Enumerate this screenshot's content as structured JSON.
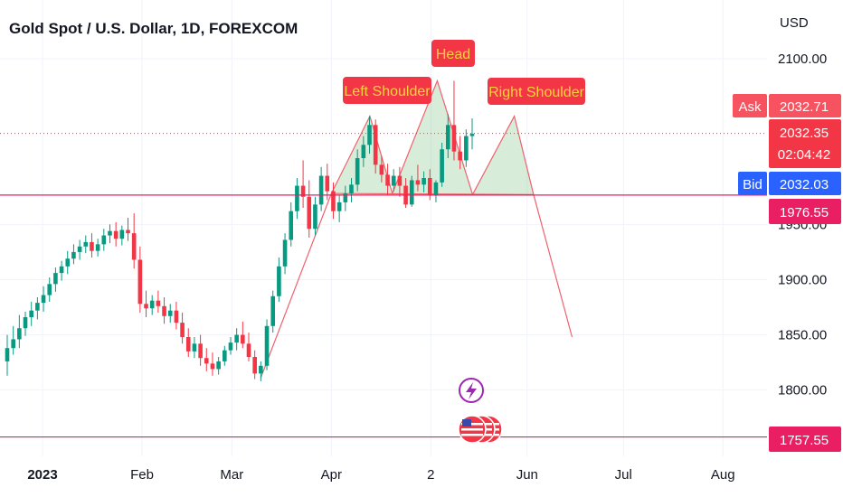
{
  "chart_data": {
    "type": "candlestick",
    "title": "Gold Spot / U.S. Dollar, 1D, FOREXCOM",
    "currency": "USD",
    "y_ticks": [
      {
        "value": 2100,
        "label": "2100.00"
      },
      {
        "value": 1950,
        "label": "1950.00"
      },
      {
        "value": 1900,
        "label": "1900.00"
      },
      {
        "value": 1850,
        "label": "1850.00"
      },
      {
        "value": 1800,
        "label": "1800.00"
      }
    ],
    "x_ticks": [
      {
        "date": "2023-01-01",
        "label": "2023",
        "bold": true
      },
      {
        "date": "2023-02-01",
        "label": "Feb",
        "bold": false
      },
      {
        "date": "2023-03-01",
        "label": "Mar",
        "bold": false
      },
      {
        "date": "2023-04-01",
        "label": "Apr",
        "bold": false
      },
      {
        "date": "2023-05-02",
        "label": "2",
        "bold": false
      },
      {
        "date": "2023-06-01",
        "label": "Jun",
        "bold": false
      },
      {
        "date": "2023-07-01",
        "label": "Jul",
        "bold": false
      },
      {
        "date": "2023-08-01",
        "label": "Aug",
        "bold": false
      }
    ],
    "price_badges": {
      "ask": {
        "label": "Ask",
        "value": "2032.71",
        "price": 2056
      },
      "last": {
        "value": "2032.35",
        "countdown": "02:04:42",
        "price": 2032.35
      },
      "bid": {
        "label": "Bid",
        "value": "2032.03",
        "price": 1986
      },
      "support": {
        "value": "1976.55",
        "price": 1976.55
      },
      "low": {
        "value": "1757.55",
        "price": 1757.55
      }
    },
    "annotations": [
      {
        "text": "Left Shoulder"
      },
      {
        "text": "Head"
      },
      {
        "text": "Right Shoulder"
      }
    ],
    "pattern": {
      "neckline": 1976.55,
      "left_shoulder": {
        "date": "2023-04-13",
        "price": 2048
      },
      "head": {
        "date": "2023-05-04",
        "price": 2080
      },
      "right_shoulder": {
        "date": "2023-05-28",
        "price": 2048
      },
      "trough1": {
        "date": "2023-04-20",
        "price": 1978
      },
      "trough2": {
        "date": "2023-05-15",
        "price": 1977
      },
      "start": {
        "date": "2023-04-01",
        "price": 1978
      },
      "end": {
        "date": "2023-06-03",
        "price": 1977
      },
      "target": {
        "date": "2023-06-15",
        "price": 1848
      }
    },
    "trend_line": [
      {
        "date": "2023-03-10",
        "price": 1811
      },
      {
        "date": "2023-04-01",
        "price": 1978
      }
    ],
    "candles": [
      {
        "o": 1826,
        "h": 1850,
        "c": 1838,
        "l": 1813
      },
      {
        "o": 1838,
        "h": 1858,
        "c": 1846,
        "l": 1832
      },
      {
        "o": 1846,
        "h": 1868,
        "c": 1856,
        "l": 1838
      },
      {
        "o": 1856,
        "h": 1871,
        "c": 1866,
        "l": 1849
      },
      {
        "o": 1866,
        "h": 1880,
        "c": 1872,
        "l": 1858
      },
      {
        "o": 1872,
        "h": 1884,
        "c": 1879,
        "l": 1864
      },
      {
        "o": 1879,
        "h": 1894,
        "c": 1886,
        "l": 1871
      },
      {
        "o": 1886,
        "h": 1902,
        "c": 1896,
        "l": 1880
      },
      {
        "o": 1896,
        "h": 1911,
        "c": 1906,
        "l": 1889
      },
      {
        "o": 1906,
        "h": 1917,
        "c": 1912,
        "l": 1899
      },
      {
        "o": 1912,
        "h": 1926,
        "c": 1919,
        "l": 1905
      },
      {
        "o": 1919,
        "h": 1932,
        "c": 1925,
        "l": 1914
      },
      {
        "o": 1925,
        "h": 1936,
        "c": 1930,
        "l": 1918
      },
      {
        "o": 1930,
        "h": 1940,
        "c": 1934,
        "l": 1924
      },
      {
        "o": 1934,
        "h": 1942,
        "c": 1926,
        "l": 1920
      },
      {
        "o": 1926,
        "h": 1937,
        "c": 1932,
        "l": 1921
      },
      {
        "o": 1932,
        "h": 1946,
        "c": 1940,
        "l": 1926
      },
      {
        "o": 1940,
        "h": 1950,
        "c": 1944,
        "l": 1933
      },
      {
        "o": 1944,
        "h": 1952,
        "c": 1937,
        "l": 1930
      },
      {
        "o": 1937,
        "h": 1949,
        "c": 1945,
        "l": 1931
      },
      {
        "o": 1945,
        "h": 1956,
        "c": 1942,
        "l": 1935
      },
      {
        "o": 1942,
        "h": 1960,
        "c": 1918,
        "l": 1910
      },
      {
        "o": 1918,
        "h": 1930,
        "c": 1878,
        "l": 1870
      },
      {
        "o": 1878,
        "h": 1890,
        "c": 1874,
        "l": 1866
      },
      {
        "o": 1874,
        "h": 1886,
        "c": 1881,
        "l": 1868
      },
      {
        "o": 1881,
        "h": 1890,
        "c": 1876,
        "l": 1870
      },
      {
        "o": 1876,
        "h": 1884,
        "c": 1867,
        "l": 1860
      },
      {
        "o": 1867,
        "h": 1878,
        "c": 1872,
        "l": 1861
      },
      {
        "o": 1872,
        "h": 1880,
        "c": 1861,
        "l": 1855
      },
      {
        "o": 1861,
        "h": 1870,
        "c": 1848,
        "l": 1842
      },
      {
        "o": 1848,
        "h": 1856,
        "c": 1835,
        "l": 1830
      },
      {
        "o": 1835,
        "h": 1848,
        "c": 1842,
        "l": 1829
      },
      {
        "o": 1842,
        "h": 1850,
        "c": 1829,
        "l": 1822
      },
      {
        "o": 1829,
        "h": 1838,
        "c": 1824,
        "l": 1817
      },
      {
        "o": 1824,
        "h": 1834,
        "c": 1819,
        "l": 1813
      },
      {
        "o": 1819,
        "h": 1830,
        "c": 1826,
        "l": 1814
      },
      {
        "o": 1826,
        "h": 1840,
        "c": 1836,
        "l": 1822
      },
      {
        "o": 1836,
        "h": 1848,
        "c": 1843,
        "l": 1832
      },
      {
        "o": 1843,
        "h": 1856,
        "c": 1850,
        "l": 1836
      },
      {
        "o": 1850,
        "h": 1862,
        "c": 1842,
        "l": 1838
      },
      {
        "o": 1842,
        "h": 1852,
        "c": 1830,
        "l": 1826
      },
      {
        "o": 1830,
        "h": 1836,
        "c": 1815,
        "l": 1810
      },
      {
        "o": 1815,
        "h": 1826,
        "c": 1822,
        "l": 1808
      },
      {
        "o": 1822,
        "h": 1864,
        "c": 1858,
        "l": 1818
      },
      {
        "o": 1858,
        "h": 1890,
        "c": 1885,
        "l": 1852
      },
      {
        "o": 1885,
        "h": 1920,
        "c": 1912,
        "l": 1880
      },
      {
        "o": 1912,
        "h": 1942,
        "c": 1936,
        "l": 1905
      },
      {
        "o": 1936,
        "h": 1970,
        "c": 1962,
        "l": 1930
      },
      {
        "o": 1962,
        "h": 1992,
        "c": 1985,
        "l": 1955
      },
      {
        "o": 1985,
        "h": 2008,
        "c": 1975,
        "l": 1965
      },
      {
        "o": 1975,
        "h": 1990,
        "c": 1946,
        "l": 1938
      },
      {
        "o": 1946,
        "h": 1975,
        "c": 1968,
        "l": 1940
      },
      {
        "o": 1968,
        "h": 2002,
        "c": 1994,
        "l": 1962
      },
      {
        "o": 1994,
        "h": 2005,
        "c": 1980,
        "l": 1972
      },
      {
        "o": 1980,
        "h": 1988,
        "c": 1962,
        "l": 1955
      },
      {
        "o": 1962,
        "h": 1976,
        "c": 1970,
        "l": 1952
      },
      {
        "o": 1970,
        "h": 1985,
        "c": 1978,
        "l": 1962
      },
      {
        "o": 1978,
        "h": 1992,
        "c": 1986,
        "l": 1970
      },
      {
        "o": 1986,
        "h": 2018,
        "c": 2010,
        "l": 1980
      },
      {
        "o": 2010,
        "h": 2030,
        "c": 2022,
        "l": 2002
      },
      {
        "o": 2022,
        "h": 2048,
        "c": 2040,
        "l": 2014
      },
      {
        "o": 2040,
        "h": 2045,
        "c": 2004,
        "l": 1996
      },
      {
        "o": 2004,
        "h": 2012,
        "c": 1995,
        "l": 1988
      },
      {
        "o": 1995,
        "h": 2005,
        "c": 1985,
        "l": 1976
      },
      {
        "o": 1985,
        "h": 2000,
        "c": 1994,
        "l": 1980
      },
      {
        "o": 1994,
        "h": 2002,
        "c": 1985,
        "l": 1975
      },
      {
        "o": 1985,
        "h": 1992,
        "c": 1968,
        "l": 1965
      },
      {
        "o": 1968,
        "h": 1994,
        "c": 1990,
        "l": 1966
      },
      {
        "o": 1990,
        "h": 2004,
        "c": 1986,
        "l": 1980
      },
      {
        "o": 1986,
        "h": 1998,
        "c": 1992,
        "l": 1979
      },
      {
        "o": 1992,
        "h": 2000,
        "c": 1976,
        "l": 1972
      },
      {
        "o": 1976,
        "h": 1990,
        "c": 1988,
        "l": 1970
      },
      {
        "o": 1988,
        "h": 2024,
        "c": 2018,
        "l": 1984
      },
      {
        "o": 2018,
        "h": 2050,
        "c": 2040,
        "l": 2010
      },
      {
        "o": 2040,
        "h": 2080,
        "c": 2016,
        "l": 2008
      },
      {
        "o": 2016,
        "h": 2030,
        "c": 2008,
        "l": 2000
      },
      {
        "o": 2008,
        "h": 2036,
        "c": 2030,
        "l": 2002
      },
      {
        "o": 2030,
        "h": 2046,
        "c": 2032,
        "l": 2018
      }
    ]
  }
}
